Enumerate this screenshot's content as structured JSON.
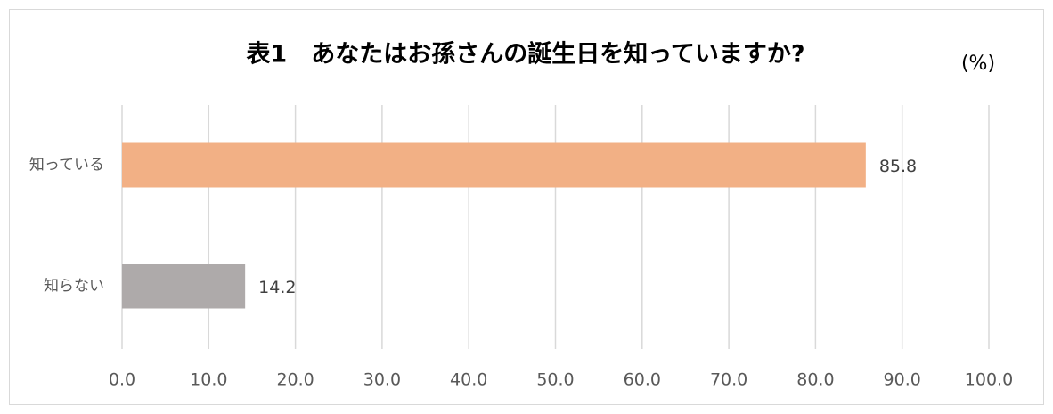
{
  "chart_data": {
    "type": "bar",
    "orientation": "horizontal",
    "title": "表1　あなたはお孫さんの誕生日を知っていますか?",
    "unit": "(%)",
    "categories": [
      "知っている",
      "知らない"
    ],
    "values": [
      85.8,
      14.2
    ],
    "colors": [
      "#f2b085",
      "#aeaaaa"
    ],
    "xlim": [
      0,
      100
    ],
    "xticks": [
      {
        "value": 0,
        "label": "0.0"
      },
      {
        "value": 10,
        "label": "10.0"
      },
      {
        "value": 20,
        "label": "20.0"
      },
      {
        "value": 30,
        "label": "30.0"
      },
      {
        "value": 40,
        "label": "40.0"
      },
      {
        "value": 50,
        "label": "50.0"
      },
      {
        "value": 60,
        "label": "60.0"
      },
      {
        "value": 70,
        "label": "70.0"
      },
      {
        "value": 80,
        "label": "80.0"
      },
      {
        "value": 90,
        "label": "90.0"
      },
      {
        "value": 100,
        "label": "100.0"
      }
    ],
    "grid": true
  }
}
